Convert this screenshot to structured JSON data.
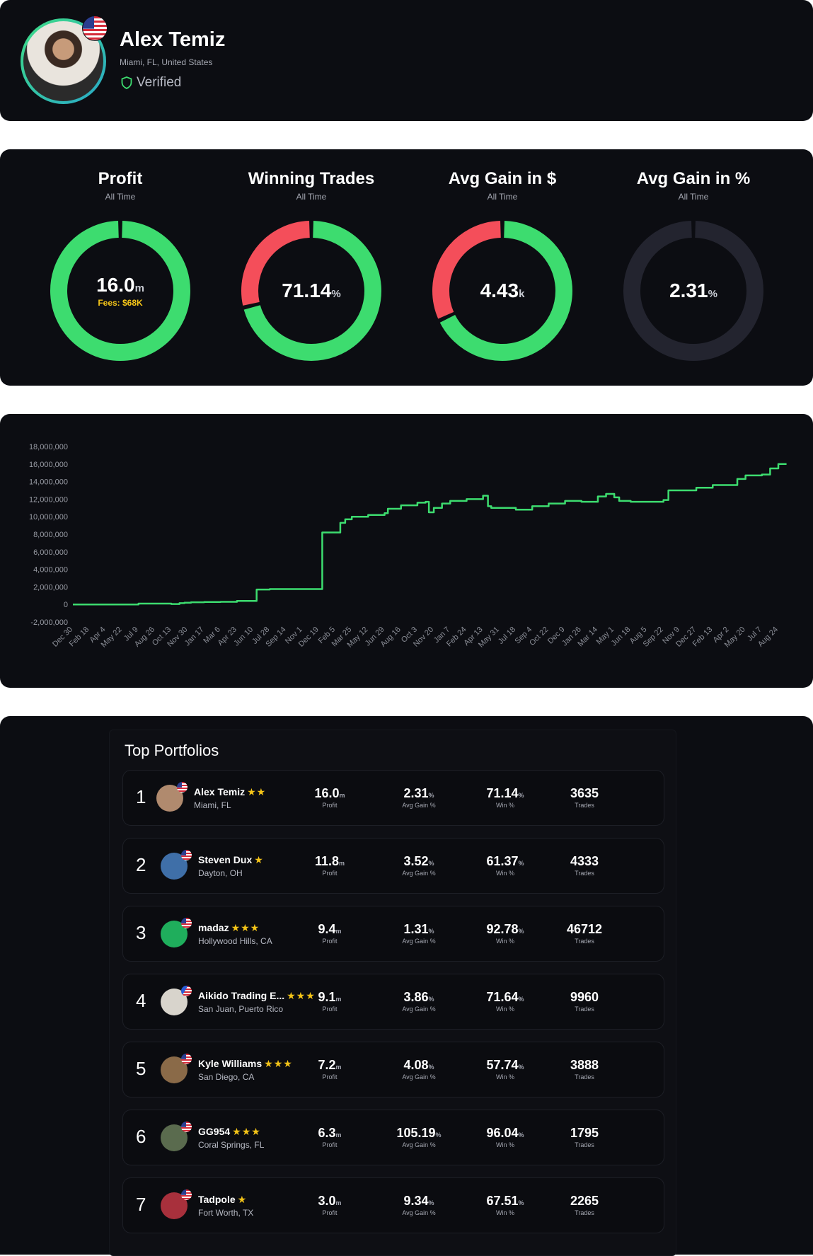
{
  "profile": {
    "name": "Alex Temiz",
    "location": "Miami, FL, United States",
    "verified_label": "Verified"
  },
  "stats": [
    {
      "title": "Profit",
      "subtitle": "All Time",
      "value": "16.0",
      "unit": "m",
      "fees": "Fees: $68K",
      "green_fraction": 1.0,
      "red_fraction": 0,
      "color_main": "#3ddc6f"
    },
    {
      "title": "Winning Trades",
      "subtitle": "All Time",
      "value": "71.14",
      "unit": "%",
      "fees": "",
      "green_fraction": 0.7114,
      "red_fraction": 0.2886,
      "color_main": "#3ddc6f"
    },
    {
      "title": "Avg Gain in $",
      "subtitle": "All Time",
      "value": "4.43",
      "unit": "k",
      "fees": "",
      "green_fraction": 0.68,
      "red_fraction": 0.32,
      "color_main": "#3ddc6f"
    },
    {
      "title": "Avg Gain in %",
      "subtitle": "All Time",
      "value": "2.31",
      "unit": "%",
      "fees": "",
      "green_fraction": 0,
      "red_fraction": 0,
      "color_main": "#23242f"
    }
  ],
  "colors": {
    "green": "#3ddc6f",
    "red": "#f44e5a",
    "track": "#23242f",
    "card": "#0c0d12"
  },
  "chart_data": {
    "type": "line",
    "title": "",
    "xlabel": "",
    "ylabel": "",
    "ylim": [
      -2000000,
      18000000
    ],
    "yticks": [
      "18,000,000",
      "16,000,000",
      "14,000,000",
      "12,000,000",
      "10,000,000",
      "8,000,000",
      "6,000,000",
      "4,000,000",
      "2,000,000",
      "0",
      "-2,000,000"
    ],
    "ytick_values": [
      18000000,
      16000000,
      14000000,
      12000000,
      10000000,
      8000000,
      6000000,
      4000000,
      2000000,
      0,
      -2000000
    ],
    "xticks": [
      "Dec 30",
      "Feb 18",
      "Apr 4",
      "May 22",
      "Jul 9",
      "Aug 26",
      "Oct 13",
      "Nov 30",
      "Jan 17",
      "Mar 6",
      "Apr 23",
      "Jun 10",
      "Jul 28",
      "Sep 14",
      "Nov 1",
      "Dec 19",
      "Feb 5",
      "Mar 25",
      "May 12",
      "Jun 29",
      "Aug 16",
      "Oct 3",
      "Nov 20",
      "Jan 7",
      "Feb 24",
      "Apr 13",
      "May 31",
      "Jul 18",
      "Sep 4",
      "Oct 22",
      "Dec 9",
      "Jan 26",
      "Mar 14",
      "May 1",
      "Jun 18",
      "Aug 5",
      "Sep 22",
      "Nov 9",
      "Dec 27",
      "Feb 13",
      "Apr 2",
      "May 20",
      "Jul 7",
      "Aug 24"
    ],
    "grid": false,
    "legend": "none",
    "series": [
      {
        "color": "#3ddc6f",
        "x": [
          0,
          2,
          4,
          6,
          6.5,
          6.8,
          7.2,
          8,
          9,
          10,
          11,
          11.2,
          12,
          13,
          14,
          15,
          15.2,
          16,
          16.3,
          16.6,
          17,
          18,
          19,
          19.2,
          20,
          21,
          21.5,
          21.7,
          22,
          22.5,
          23,
          24,
          25,
          25.3,
          25.5,
          26,
          27,
          28,
          29,
          30,
          31,
          32,
          32.5,
          33,
          33.3,
          34,
          35,
          36,
          36.3,
          37,
          38,
          39,
          40,
          40.5,
          41,
          42,
          42.5,
          43,
          43.5
        ],
        "y": [
          0,
          0,
          100000,
          50000,
          150000,
          200000,
          250000,
          280000,
          300000,
          400000,
          400000,
          1700000,
          1750000,
          1750000,
          1750000,
          1750000,
          8200000,
          8200000,
          9300000,
          9700000,
          10000000,
          10200000,
          10400000,
          10900000,
          11300000,
          11600000,
          11700000,
          10500000,
          11000000,
          11500000,
          11800000,
          12000000,
          12400000,
          11200000,
          11000000,
          11000000,
          10800000,
          11200000,
          11500000,
          11800000,
          11700000,
          12300000,
          12600000,
          12200000,
          11800000,
          11700000,
          11700000,
          11900000,
          13000000,
          13000000,
          13300000,
          13600000,
          13600000,
          14300000,
          14700000,
          14800000,
          15500000,
          16000000,
          16000000
        ]
      }
    ]
  },
  "board": {
    "title": "Top Portfolios",
    "labels": {
      "profit": "Profit",
      "avg_gain": "Avg Gain %",
      "win": "Win %",
      "trades": "Trades"
    },
    "rows": [
      {
        "rank": "1",
        "name": "Alex Temiz",
        "stars": "★★",
        "location": "Miami, FL",
        "profit": "16.0",
        "profit_unit": "m",
        "avg_gain": "2.31",
        "win": "71.14",
        "trades": "3635",
        "flag": "us",
        "avatar_color": "#b08a6e"
      },
      {
        "rank": "2",
        "name": "Steven Dux",
        "stars": "★",
        "location": "Dayton, OH",
        "profit": "11.8",
        "profit_unit": "m",
        "avg_gain": "3.52",
        "win": "61.37",
        "trades": "4333",
        "flag": "us",
        "avatar_color": "#3f6fa8"
      },
      {
        "rank": "3",
        "name": "madaz",
        "stars": "★★★",
        "location": "Hollywood Hills, CA",
        "profit": "9.4",
        "profit_unit": "m",
        "avg_gain": "1.31",
        "win": "92.78",
        "trades": "46712",
        "flag": "us",
        "avatar_color": "#1fae5c"
      },
      {
        "rank": "4",
        "name": "Aikido Trading E...",
        "stars": "★★★",
        "location": "San Juan, Puerto Rico",
        "profit": "9.1",
        "profit_unit": "m",
        "avg_gain": "3.86",
        "win": "71.64",
        "trades": "9960",
        "flag": "pr",
        "avatar_color": "#d8d4cc"
      },
      {
        "rank": "5",
        "name": "Kyle Williams",
        "stars": "★★★",
        "location": "San Diego, CA",
        "profit": "7.2",
        "profit_unit": "m",
        "avg_gain": "4.08",
        "win": "57.74",
        "trades": "3888",
        "flag": "us",
        "avatar_color": "#8a6a48"
      },
      {
        "rank": "6",
        "name": "GG954",
        "stars": "★★★",
        "location": "Coral Springs, FL",
        "profit": "6.3",
        "profit_unit": "m",
        "avg_gain": "105.19",
        "win": "96.04",
        "trades": "1795",
        "flag": "us",
        "avatar_color": "#5a6b4e"
      },
      {
        "rank": "7",
        "name": "Tadpole",
        "stars": "★",
        "location": "Fort Worth, TX",
        "profit": "3.0",
        "profit_unit": "m",
        "avg_gain": "9.34",
        "win": "67.51",
        "trades": "2265",
        "flag": "us",
        "avatar_color": "#a8303c"
      }
    ]
  }
}
